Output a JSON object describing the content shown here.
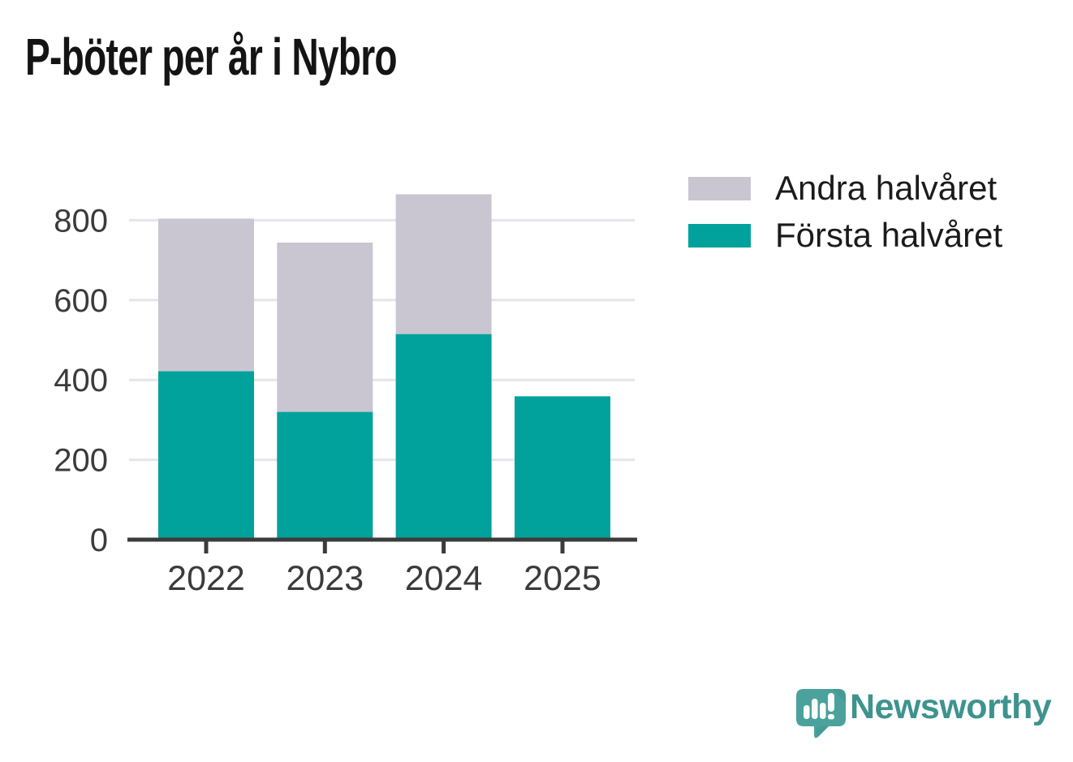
{
  "chart_data": {
    "type": "bar",
    "stacked": true,
    "title": "P-böter per år i Nybro",
    "categories": [
      "2022",
      "2023",
      "2024",
      "2025"
    ],
    "series": [
      {
        "name": "Första halvåret",
        "color": "#00A29B",
        "values": [
          422,
          320,
          515,
          359
        ]
      },
      {
        "name": "Andra halvåret",
        "color": "#C9C6D1",
        "values": [
          382,
          424,
          350,
          0
        ]
      }
    ],
    "stack_totals": [
      804,
      744,
      865,
      359
    ],
    "y_ticks": [
      0,
      200,
      400,
      600,
      800
    ],
    "ylim": [
      0,
      880
    ],
    "xlabel": "",
    "ylabel": "",
    "grid": "horizontal",
    "legend_position": "outside-upper-right",
    "legend_order": [
      "Andra halvåret",
      "Första halvåret"
    ],
    "colors": {
      "axis_line": "#3B3B3B",
      "grid_line": "#E6E5E9",
      "tick_text": "#3B3B3B",
      "title_text": "#141414"
    }
  },
  "branding": {
    "logo_text": "Newsworthy",
    "logo_text_color": "#3E938F",
    "logo_mark_color": "#4BA29D",
    "logo_mark_shade_color": "#3D908B",
    "logo_mark_glyph": "bar-chart-and-exclamation-in-speech-bubble"
  }
}
